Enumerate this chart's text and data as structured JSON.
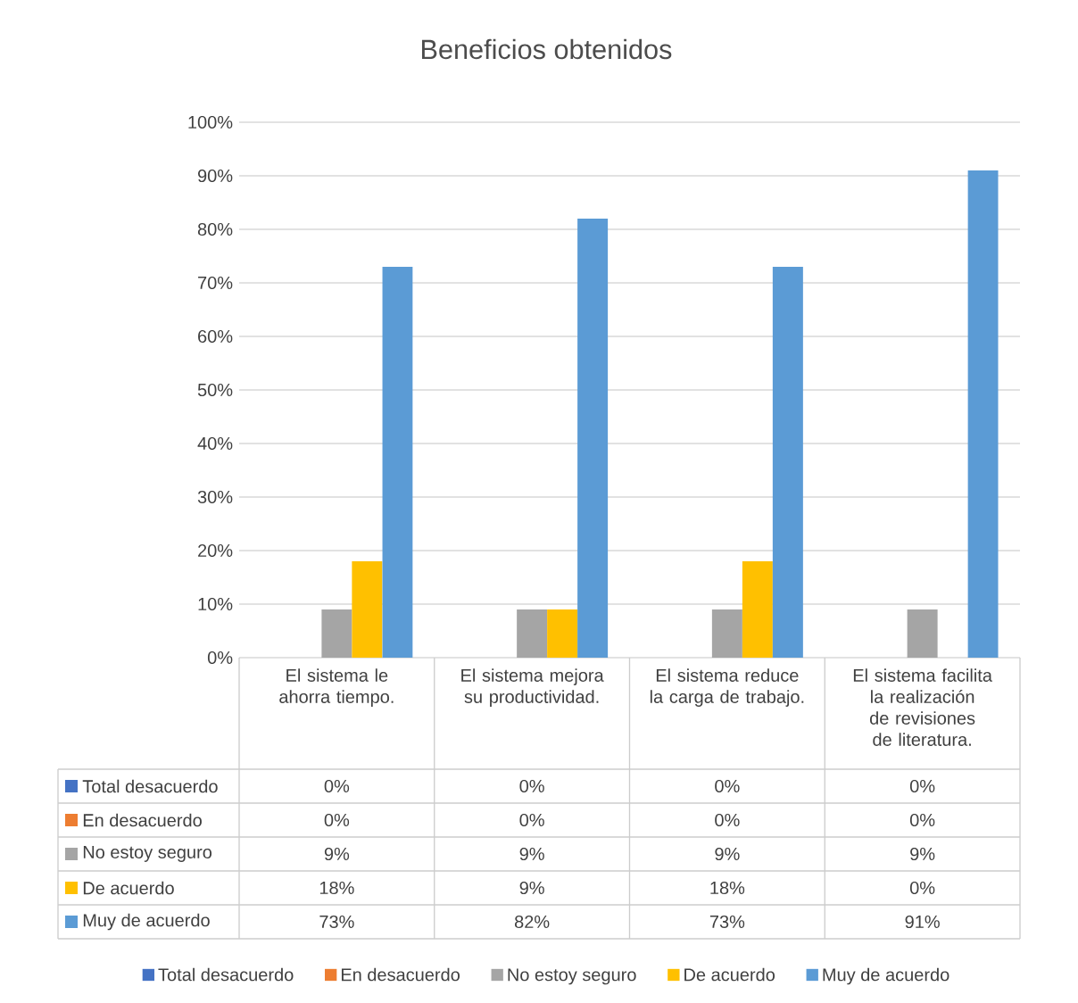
{
  "chart_data": {
    "type": "bar",
    "title": "Beneficios obtenidos",
    "categories": [
      "El sistema le ahorra tiempo.",
      "El sistema mejora su productividad.",
      "El sistema reduce la carga de trabajo.",
      "El sistema facilita la realización de revisiones de literatura."
    ],
    "series": [
      {
        "name": "Total desacuerdo",
        "color": "#4472c4",
        "values": [
          0,
          0,
          0,
          0
        ],
        "value_labels": [
          "0%",
          "0%",
          "0%",
          "0%"
        ]
      },
      {
        "name": "En desacuerdo",
        "color": "#ed7d31",
        "values": [
          0,
          0,
          0,
          0
        ],
        "value_labels": [
          "0%",
          "0%",
          "0%",
          "0%"
        ]
      },
      {
        "name": "No estoy seguro",
        "color": "#a5a5a5",
        "values": [
          9,
          9,
          9,
          9
        ],
        "value_labels": [
          "9%",
          "9%",
          "9%",
          "9%"
        ]
      },
      {
        "name": "De acuerdo",
        "color": "#ffc000",
        "values": [
          18,
          9,
          18,
          0
        ],
        "value_labels": [
          "18%",
          "9%",
          "18%",
          "0%"
        ]
      },
      {
        "name": "Muy de acuerdo",
        "color": "#5b9bd5",
        "values": [
          73,
          82,
          73,
          91
        ],
        "value_labels": [
          "73%",
          "82%",
          "73%",
          "91%"
        ]
      }
    ],
    "ylim": [
      0,
      100
    ],
    "yticks": [
      {
        "value": 0,
        "label": "0%"
      },
      {
        "value": 10,
        "label": "10%"
      },
      {
        "value": 20,
        "label": "20%"
      },
      {
        "value": 30,
        "label": "30%"
      },
      {
        "value": 40,
        "label": "40%"
      },
      {
        "value": 50,
        "label": "50%"
      },
      {
        "value": 60,
        "label": "60%"
      },
      {
        "value": 70,
        "label": "70%"
      },
      {
        "value": 80,
        "label": "80%"
      },
      {
        "value": 90,
        "label": "90%"
      },
      {
        "value": 100,
        "label": "100%"
      }
    ],
    "grid": "y",
    "legend": "bottom"
  }
}
